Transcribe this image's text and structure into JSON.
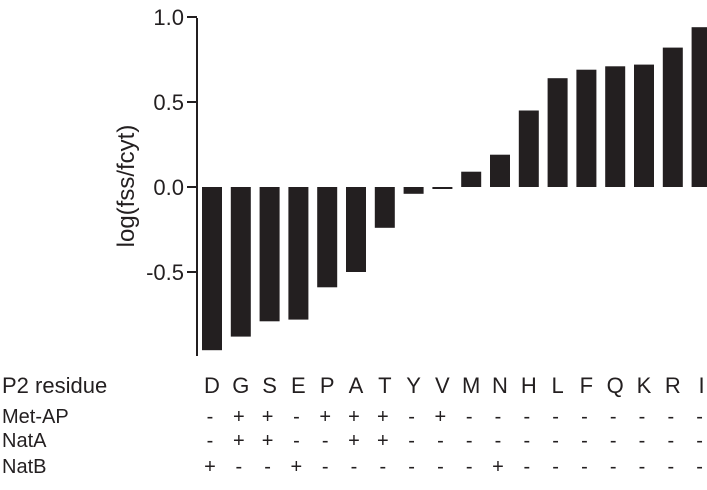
{
  "chart_data": {
    "type": "bar",
    "ylabel": "log(fss/fcyt)",
    "ylim": [
      -0.97,
      1.0
    ],
    "yticks": [
      1.0,
      0.5,
      0.0,
      -0.5
    ],
    "ytick_labels": [
      "1.0",
      "0.5",
      "0.0",
      "-0.5"
    ],
    "categories": [
      "D",
      "G",
      "S",
      "E",
      "P",
      "A",
      "T",
      "Y",
      "V",
      "M",
      "N",
      "H",
      "L",
      "F",
      "Q",
      "K",
      "R",
      "I"
    ],
    "values": [
      -0.96,
      -0.88,
      -0.79,
      -0.78,
      -0.59,
      -0.5,
      -0.24,
      -0.04,
      0.0,
      0.09,
      0.19,
      0.45,
      0.64,
      0.69,
      0.71,
      0.72,
      0.82,
      0.94
    ],
    "bar_color": "#231f20",
    "grid": false,
    "table": {
      "header": "P2 residue",
      "rows": [
        {
          "label": "Met-AP",
          "marks": [
            "-",
            "+",
            "+",
            "-",
            "+",
            "+",
            "+",
            "-",
            "+",
            "-",
            "-",
            "-",
            "-",
            "-",
            "-",
            "-",
            "-",
            "-"
          ]
        },
        {
          "label": "NatA",
          "marks": [
            "-",
            "+",
            "+",
            "-",
            "-",
            "+",
            "+",
            "-",
            "-",
            "-",
            "-",
            "-",
            "-",
            "-",
            "-",
            "-",
            "-",
            "-"
          ]
        },
        {
          "label": "NatB",
          "marks": [
            "+",
            "-",
            "-",
            "+",
            "-",
            "-",
            "-",
            "-",
            "-",
            "-",
            "+",
            "-",
            "-",
            "-",
            "-",
            "-",
            "-",
            "-"
          ]
        }
      ]
    }
  }
}
